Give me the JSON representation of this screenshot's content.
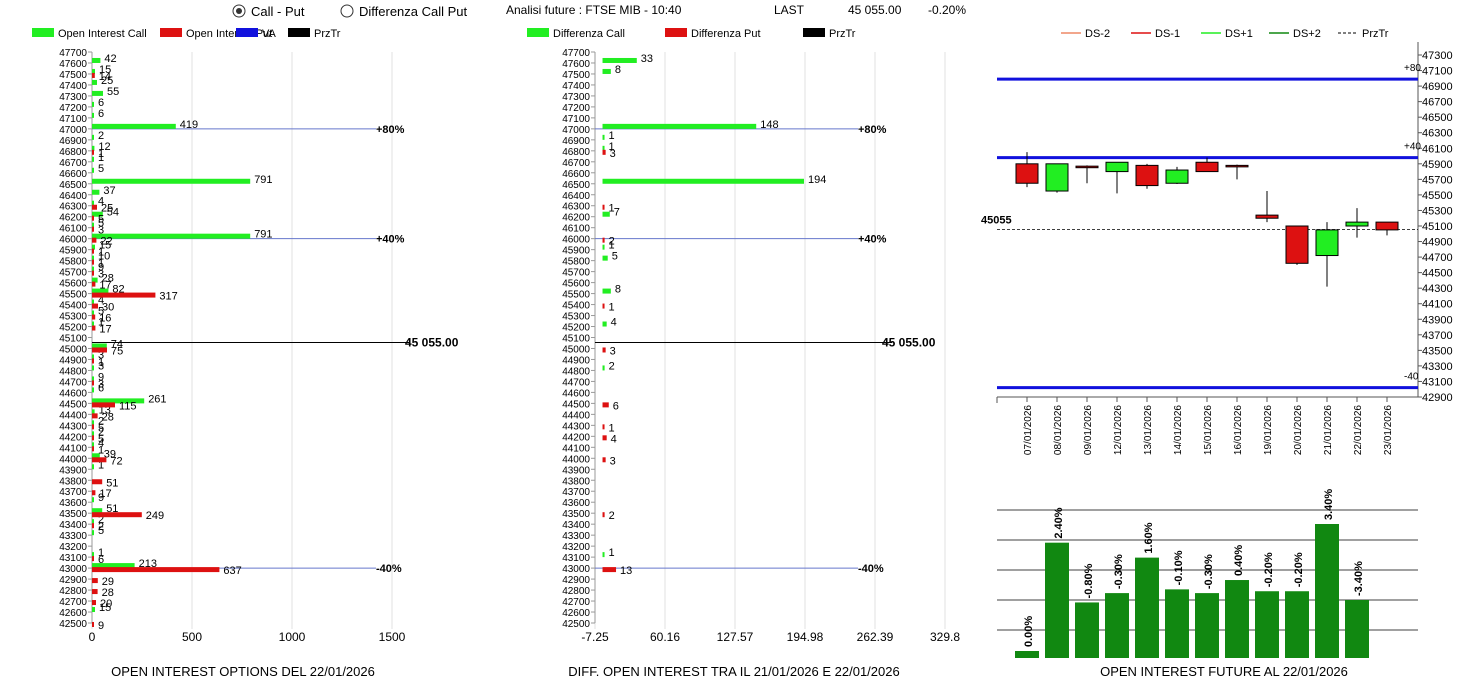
{
  "header": {
    "radio_call_put": "Call - Put",
    "radio_diff": "Differenza Call Put",
    "analysis": "Analisi future : FTSE MIB - 10:40",
    "last_label": "LAST",
    "last_value": "45 055.00",
    "last_change": "-0.20%"
  },
  "colors": {
    "green": "#22ee22",
    "red": "#dd1111",
    "blue": "#1111dd",
    "dark_green": "#118811",
    "grid": "#e2e2e2",
    "price_line": "#6677cc"
  },
  "chart_data": [
    {
      "type": "bar",
      "orientation": "horizontal",
      "title": "OPEN INTEREST OPTIONS DEL 22/01/2026",
      "legend": [
        "Open Interest Call",
        "Open Interest Put",
        "PrzTr",
        "VA"
      ],
      "strikes_range": [
        42500,
        47700
      ],
      "xlim": [
        0,
        1500
      ],
      "xticks": [
        "0",
        "500",
        "1000",
        "1500"
      ],
      "series": [
        {
          "name": "Open Interest Call",
          "values": [
            [
              47600,
              42
            ],
            [
              47500,
              15
            ],
            [
              47400,
              25
            ],
            [
              47300,
              55
            ],
            [
              47200,
              6
            ],
            [
              47100,
              6
            ],
            [
              47000,
              419
            ],
            [
              46900,
              2
            ],
            [
              46800,
              12
            ],
            [
              46700,
              1
            ],
            [
              46600,
              5
            ],
            [
              46500,
              791
            ],
            [
              46400,
              37
            ],
            [
              46300,
              4
            ],
            [
              46200,
              54
            ],
            [
              46100,
              5
            ],
            [
              46000,
              791
            ],
            [
              45900,
              15
            ],
            [
              45800,
              10
            ],
            [
              45700,
              9
            ],
            [
              45600,
              28
            ],
            [
              45500,
              82
            ],
            [
              45400,
              4
            ],
            [
              45300,
              5
            ],
            [
              45200,
              1
            ],
            [
              45000,
              74
            ],
            [
              44900,
              3
            ],
            [
              44800,
              3
            ],
            [
              44700,
              9
            ],
            [
              44600,
              6
            ],
            [
              44500,
              261
            ],
            [
              44400,
              13
            ],
            [
              44300,
              2
            ],
            [
              44200,
              2
            ],
            [
              44100,
              4
            ],
            [
              44000,
              39
            ],
            [
              43900,
              1
            ],
            [
              43600,
              9
            ],
            [
              43500,
              51
            ],
            [
              43400,
              2
            ],
            [
              43300,
              5
            ],
            [
              43100,
              1
            ],
            [
              43000,
              213
            ],
            [
              42600,
              15
            ]
          ]
        },
        {
          "name": "Open Interest Put",
          "values": [
            [
              47500,
              14
            ],
            [
              46800,
              1
            ],
            [
              46300,
              25
            ],
            [
              46200,
              5
            ],
            [
              46100,
              3
            ],
            [
              46000,
              22
            ],
            [
              45900,
              1
            ],
            [
              45800,
              1
            ],
            [
              45700,
              3
            ],
            [
              45600,
              17
            ],
            [
              45500,
              317
            ],
            [
              45400,
              30
            ],
            [
              45300,
              16
            ],
            [
              45200,
              17
            ],
            [
              45000,
              75
            ],
            [
              44900,
              1
            ],
            [
              44700,
              3
            ],
            [
              44500,
              115
            ],
            [
              44400,
              28
            ],
            [
              44300,
              5
            ],
            [
              44200,
              5
            ],
            [
              44100,
              1
            ],
            [
              44000,
              72
            ],
            [
              43800,
              51
            ],
            [
              43700,
              17
            ],
            [
              43500,
              249
            ],
            [
              43400,
              2
            ],
            [
              43100,
              6
            ],
            [
              43000,
              637
            ],
            [
              42900,
              29
            ],
            [
              42800,
              28
            ],
            [
              42700,
              20
            ],
            [
              42500,
              9
            ]
          ]
        }
      ],
      "price_line": {
        "value": 45055,
        "label": "45 055.00"
      },
      "przTr_levels": [
        {
          "strike": 47000,
          "label": "+80%"
        },
        {
          "strike": 46000,
          "label": "+40%"
        },
        {
          "strike": 43000,
          "label": "-40%"
        }
      ]
    },
    {
      "type": "bar",
      "orientation": "horizontal",
      "title": "DIFF. OPEN INTEREST TRA IL 21/01/2026 E 22/01/2026",
      "legend": [
        "Differenza Call",
        "Differenza Put",
        "PrzTr"
      ],
      "strikes_range": [
        42500,
        47700
      ],
      "xlim": [
        -7.25,
        329.8
      ],
      "xticks": [
        "-7.25",
        "60.16",
        "127.57",
        "194.98",
        "262.39",
        "329.8"
      ],
      "series": [
        {
          "name": "Differenza Call",
          "values": [
            [
              47600,
              33
            ],
            [
              47500,
              8
            ],
            [
              46900,
              1
            ],
            [
              46800,
              1
            ],
            [
              47000,
              148
            ],
            [
              46500,
              194
            ],
            [
              46200,
              7
            ],
            [
              45900,
              1
            ],
            [
              45800,
              5
            ],
            [
              45500,
              8
            ],
            [
              45200,
              4
            ],
            [
              44800,
              2
            ],
            [
              43100,
              1
            ]
          ]
        },
        {
          "name": "Differenza Put",
          "values": [
            [
              46800,
              3
            ],
            [
              46300,
              1
            ],
            [
              46000,
              2
            ],
            [
              45400,
              1
            ],
            [
              45000,
              3
            ],
            [
              44500,
              6
            ],
            [
              44300,
              1
            ],
            [
              44200,
              4
            ],
            [
              44000,
              3
            ],
            [
              43500,
              2
            ],
            [
              43000,
              13
            ]
          ]
        }
      ],
      "price_line": {
        "value": 45055,
        "label": "45 055.00"
      },
      "przTr_levels": [
        {
          "strike": 47000,
          "label": "+80%"
        },
        {
          "strike": 46000,
          "label": "+40%"
        },
        {
          "strike": 43000,
          "label": "-40%"
        }
      ]
    },
    {
      "type": "candlestick",
      "legend": [
        "DS-2",
        "DS-1",
        "DS+1",
        "DS+2",
        "PrzTr"
      ],
      "ylim": [
        42900,
        47300
      ],
      "yticks": [
        "47300",
        "47100",
        "46900",
        "46700",
        "46500",
        "46300",
        "46100",
        "45900",
        "45700",
        "45500",
        "45300",
        "45100",
        "44900",
        "44700",
        "44500",
        "44300",
        "44100",
        "43900",
        "43700",
        "43500",
        "43300",
        "43100",
        "42900"
      ],
      "levels": [
        {
          "value": 46990,
          "label": "+80"
        },
        {
          "value": 45980,
          "label": "+40"
        },
        {
          "value": 43020,
          "label": "-40"
        }
      ],
      "current": {
        "value": 45055,
        "label": "45055"
      },
      "candles": [
        {
          "date": "07/01/2026",
          "open": 45900,
          "close": 45650,
          "high": 46050,
          "low": 45600
        },
        {
          "date": "08/01/2026",
          "open": 45550,
          "close": 45900,
          "high": 45900,
          "low": 45530
        },
        {
          "date": "09/01/2026",
          "open": 45870,
          "close": 45850,
          "high": 45880,
          "low": 45650
        },
        {
          "date": "12/01/2026",
          "open": 45800,
          "close": 45920,
          "high": 45920,
          "low": 45520
        },
        {
          "date": "13/01/2026",
          "open": 45880,
          "close": 45620,
          "high": 45900,
          "low": 45580
        },
        {
          "date": "14/01/2026",
          "open": 45650,
          "close": 45820,
          "high": 45860,
          "low": 45640
        },
        {
          "date": "15/01/2026",
          "open": 45920,
          "close": 45800,
          "high": 45980,
          "low": 45800
        },
        {
          "date": "16/01/2026",
          "open": 45880,
          "close": 45870,
          "high": 45890,
          "low": 45700
        },
        {
          "date": "19/01/2026",
          "open": 45240,
          "close": 45200,
          "high": 45550,
          "low": 45150
        },
        {
          "date": "20/01/2026",
          "open": 45100,
          "close": 44620,
          "high": 45100,
          "low": 44600
        },
        {
          "date": "21/01/2026",
          "open": 44720,
          "close": 45050,
          "high": 45150,
          "low": 44320
        },
        {
          "date": "22/01/2026",
          "open": 45100,
          "close": 45150,
          "high": 45330,
          "low": 44950
        },
        {
          "date": "23/01/2026",
          "open": 45150,
          "close": 45050,
          "high": 45150,
          "low": 44980
        }
      ]
    },
    {
      "type": "bar",
      "title": "OPEN INTEREST FUTURE AL 22/01/2026",
      "labels": [
        "0.00%",
        "2.40%",
        "-0.80%",
        "-0.30%",
        "1.60%",
        "-0.10%",
        "-0.30%",
        "0.40%",
        "-0.20%",
        "-0.20%",
        "3.40%",
        "-3.40%"
      ],
      "values": [
        0.0,
        2.4,
        -0.8,
        -0.3,
        1.6,
        -0.1,
        -0.3,
        0.4,
        -0.2,
        -0.2,
        3.4,
        -3.4
      ]
    }
  ]
}
